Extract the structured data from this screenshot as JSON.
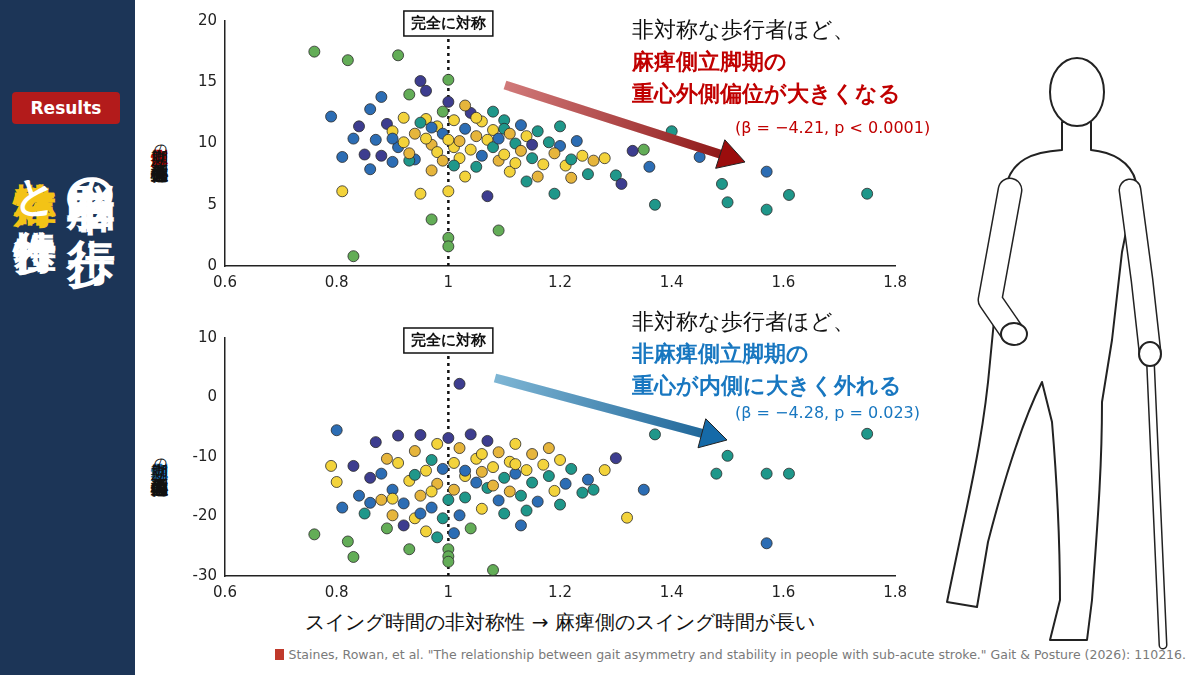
{
  "sidebar": {
    "badge": "Results",
    "title": "脳卒中者の歩行",
    "subtitle": [
      "非対称性",
      "と歩行特性"
    ]
  },
  "chart_data": [
    {
      "type": "scatter",
      "ylabel": [
        "麻痺側",
        "立脚期",
        "の",
        "重心外側偏位"
      ],
      "x": [
        0.76,
        0.82,
        0.91,
        0.83,
        0.81,
        0.97,
        1.0,
        1.0,
        1.0,
        1.0,
        1.09,
        0.79,
        0.81,
        0.83,
        0.85,
        0.86,
        0.88,
        0.87,
        0.89,
        0.9,
        0.91,
        0.92,
        0.93,
        0.95,
        0.96,
        0.97,
        0.95,
        0.94,
        0.98,
        0.96,
        0.92,
        0.93,
        0.94,
        0.96,
        0.97,
        0.98,
        0.99,
        1.01,
        1.01,
        1.02,
        1.02,
        1.03,
        1.03,
        1.04,
        1.04,
        1.05,
        1.05,
        1.06,
        1.06,
        1.07,
        1.07,
        1.08,
        1.08,
        1.09,
        1.09,
        1.1,
        1.1,
        1.1,
        1.11,
        1.12,
        1.12,
        1.13,
        1.13,
        1.14,
        1.14,
        1.15,
        1.15,
        1.16,
        1.17,
        1.18,
        1.19,
        1.2,
        1.2,
        1.21,
        1.22,
        1.22,
        1.23,
        1.24,
        1.25,
        1.26,
        1.28,
        1.3,
        1.31,
        1.33,
        1.35,
        1.36,
        1.37,
        1.4,
        1.45,
        1.49,
        1.5,
        1.57,
        1.57,
        1.61,
        1.75,
        0.88,
        0.9,
        0.86,
        0.99,
        1.0,
        0.97,
        1.03,
        0.95,
        1.05,
        1.08,
        0.84,
        1.11,
        1.0,
        1.01,
        0.93,
        1.16,
        1.19,
        0.9,
        0.99
      ],
      "values": [
        17.5,
        16.8,
        17.2,
        0.8,
        6.1,
        3.8,
        2.3,
        1.6,
        15.2,
        13.4,
        2.9,
        12.2,
        8.9,
        10.4,
        9.1,
        12.8,
        13.8,
        10.3,
        11.6,
        11,
        9.7,
        12.1,
        14,
        15.1,
        12,
        9.9,
        5.9,
        8.7,
        11.4,
        14.3,
        10.1,
        8.6,
        10.8,
        10.4,
        7.8,
        9.3,
        10.8,
        9.7,
        11.9,
        10.2,
        8.8,
        11.2,
        7.3,
        9.5,
        12.5,
        10.6,
        8.1,
        11.8,
        9,
        10.3,
        5.7,
        9.7,
        11.1,
        8.6,
        10.4,
        11.9,
        11.2,
        9.1,
        7.7,
        10,
        8.4,
        11.5,
        9.4,
        6.9,
        10.6,
        8.8,
        9.9,
        7.3,
        8.3,
        10.1,
        5.9,
        9.8,
        11.4,
        8.2,
        7.2,
        8.7,
        10.2,
        9,
        7.5,
        8.6,
        8.8,
        7.4,
        6.7,
        9.4,
        9.5,
        8.1,
        5,
        11,
        8.9,
        6.7,
        5.2,
        7.7,
        4.6,
        5.8,
        5.9,
        9,
        8.5,
        7.9,
        12.6,
        6.1,
        11.3,
        13.1,
        11.7,
        12.1,
        12.6,
        11.4,
        10.8,
        10.3,
        8.2,
        9.2,
        11,
        9.2,
        10.4,
        8.6
      ],
      "colors": [
        "#63ad57",
        "#63ad57",
        "#63ad57",
        "#63ad57",
        "#f3d33b",
        "#63ad57",
        "#63ad57",
        "#63ad57",
        "#63ad57",
        "#3d3d8f",
        "#63ad57",
        "#2c6db4",
        "#2c6db4",
        "#2c6db4",
        "#3d3d8f",
        "#2c6db4",
        "#2c6db4",
        "#2c6db4",
        "#3d3d8f",
        "#f3d33b",
        "#2c6db4",
        "#f3d33b",
        "#63ad57",
        "#3d3d8f",
        "#f3d33b",
        "#e6b53c",
        "#f3d33b",
        "#2c6db4",
        "#f3d33b",
        "#3d3d8f",
        "#f3d33b",
        "#1f978a",
        "#e6b53c",
        "#f3d33b",
        "#e6b53c",
        "#f3d33b",
        "#2c6db4",
        "#f3d33b",
        "#f3d33b",
        "#e6b53c",
        "#f3d33b",
        "#2c6db4",
        "#f3d33b",
        "#f3d33b",
        "#3d3d8f",
        "#e6b53c",
        "#1f978a",
        "#f3d33b",
        "#2c6db4",
        "#f3d33b",
        "#3d3d8f",
        "#1f978a",
        "#f3d33b",
        "#e6b53c",
        "#2c6db4",
        "#1f978a",
        "#1f978a",
        "#f3d33b",
        "#f3d33b",
        "#1f978a",
        "#f3d33b",
        "#2c6db4",
        "#e6b53c",
        "#1f978a",
        "#f3d33b",
        "#1f978a",
        "#3d3d8f",
        "#e6b53c",
        "#f3d33b",
        "#1f978a",
        "#1f978a",
        "#2c6db4",
        "#1f978a",
        "#f3d33b",
        "#e6b53c",
        "#1f978a",
        "#2c6db4",
        "#f3d33b",
        "#1f978a",
        "#e6b53c",
        "#f3d33b",
        "#1f978a",
        "#3d3d8f",
        "#3d3d8f",
        "#63ad57",
        "#2c6db4",
        "#1f978a",
        "#1f978a",
        "#2c6db4",
        "#1f978a",
        "#1f978a",
        "#2c6db4",
        "#1f978a",
        "#1f978a",
        "#1f978a",
        "#3d3d8f",
        "#2c6db4",
        "#2c6db4",
        "#63ad57",
        "#f3d33b",
        "#2c6db4",
        "#e6b53c",
        "#1f978a",
        "#f3d33b",
        "#1f978a",
        "#3d3d8f",
        "#e6b53c",
        "#f3d33b",
        "#1f978a",
        "#e6b53c",
        "#1f978a",
        "#e6b53c",
        "#2c6db4",
        "#e6b53c"
      ],
      "marker": "circle",
      "xlim": [
        0.6,
        1.8
      ],
      "xticks": [
        0.6,
        0.8,
        1,
        1.2,
        1.4,
        1.6,
        1.8
      ],
      "ylim": [
        0,
        20
      ],
      "yticks": [
        0,
        5,
        10,
        15,
        20
      ],
      "grid": false,
      "annotations": [
        {
          "x": 1,
          "label": "完全に対称"
        }
      ],
      "callout": {
        "lines": [
          "非対称な歩行者ほど、",
          "麻痺側立脚期の",
          "重心外側偏位が大きくなる"
        ],
        "stat": "(β = −4.21, p < 0.0001)"
      }
    },
    {
      "type": "scatter",
      "ylabel": [
        "非麻痺側",
        "立脚期",
        "の",
        "重心内側偏位"
      ],
      "xlabel": "スイング時間の非対称性 → 麻痺側のスイング時間が長い",
      "x": [
        0.76,
        0.8,
        0.81,
        0.82,
        0.83,
        0.79,
        0.8,
        0.83,
        0.84,
        0.85,
        0.86,
        0.87,
        0.88,
        0.88,
        0.89,
        0.9,
        0.9,
        0.91,
        0.91,
        0.92,
        0.93,
        0.93,
        0.94,
        0.94,
        0.95,
        0.95,
        0.96,
        0.96,
        0.97,
        0.97,
        0.98,
        0.98,
        0.99,
        0.99,
        1.0,
        1.0,
        1.0,
        1.0,
        1.0,
        1.01,
        1.01,
        1.02,
        1.02,
        1.02,
        1.03,
        1.03,
        1.04,
        1.04,
        1.05,
        1.05,
        1.06,
        1.06,
        1.07,
        1.07,
        1.08,
        1.08,
        1.09,
        1.09,
        1.1,
        1.1,
        1.11,
        1.11,
        1.12,
        1.12,
        1.13,
        1.13,
        1.14,
        1.15,
        1.15,
        1.16,
        1.17,
        1.18,
        1.19,
        1.2,
        1.2,
        1.21,
        1.22,
        1.24,
        1.25,
        1.26,
        1.28,
        1.3,
        1.32,
        1.35,
        1.37,
        1.48,
        1.5,
        1.57,
        1.57,
        1.61,
        1.75,
        0.9,
        0.92,
        0.97,
        1.03,
        0.95,
        1.06,
        0.86,
        1.08,
        0.98,
        1.14,
        0.89,
        1.01,
        1.12,
        1.18,
        0.94
      ],
      "values": [
        -23,
        -5.5,
        -18.5,
        -24.2,
        -26.8,
        -11.5,
        -14.2,
        -11.5,
        -16.5,
        -19.5,
        -13.5,
        -7.5,
        -12.8,
        -17.2,
        -22,
        -15.5,
        -19.8,
        -6.4,
        -11,
        -17.8,
        -14,
        -25.5,
        -9,
        -20.3,
        -6.3,
        -16.5,
        -12.3,
        -22.5,
        -10.5,
        -18.5,
        -14.5,
        -7.8,
        -12,
        -20.3,
        -6.8,
        -25.5,
        -26.7,
        -27.6,
        -17.2,
        -11,
        -15.5,
        2.3,
        -8.5,
        -19.8,
        -13.2,
        -16.8,
        -6.2,
        -22,
        -10.3,
        -14.3,
        -18.7,
        -12.5,
        -7.3,
        -15.2,
        -29,
        -11.7,
        -17.3,
        -9.2,
        -13.5,
        -19.5,
        -10.8,
        -15.8,
        -12.8,
        -7.8,
        -16.5,
        -21.5,
        -12.2,
        -14.3,
        -9.5,
        -17.5,
        -11.3,
        -13.2,
        -15.7,
        -18,
        -10.5,
        -14.5,
        -12,
        -16,
        -13.8,
        -15.5,
        -12.2,
        -10.2,
        -20.2,
        -15.5,
        -6.2,
        -12.8,
        -9.8,
        -12.8,
        -24.5,
        -12.8,
        -6.1,
        -17,
        -21.5,
        -15.8,
        -12.3,
        -19.5,
        -9.5,
        -17.7,
        -14.8,
        -23.5,
        -19,
        -10.3,
        -22.8,
        -11.2,
        -8.5,
        -13
      ],
      "colors": [
        "#63ad57",
        "#2c6db4",
        "#2c6db4",
        "#63ad57",
        "#63ad57",
        "#f3d33b",
        "#f3d33b",
        "#3d3d8f",
        "#2c6db4",
        "#1f978a",
        "#3d3d8f",
        "#3d3d8f",
        "#2c6db4",
        "#e6b53c",
        "#63ad57",
        "#2c6db4",
        "#e6b53c",
        "#3d3d8f",
        "#f3d33b",
        "#2c6db4",
        "#f3d33b",
        "#63ad57",
        "#e6b53c",
        "#f3d33b",
        "#3d3d8f",
        "#e6b53c",
        "#f3d33b",
        "#f3d33b",
        "#1f978a",
        "#2c6db4",
        "#e6b53c",
        "#f3d33b",
        "#2c6db4",
        "#1f978a",
        "#3d3d8f",
        "#63ad57",
        "#63ad57",
        "#63ad57",
        "#1f978a",
        "#f3d33b",
        "#e6b53c",
        "#3d3d8f",
        "#e6b53c",
        "#2c6db4",
        "#f3d33b",
        "#1f978a",
        "#3d3d8f",
        "#63ad57",
        "#f3d33b",
        "#2c6db4",
        "#f3d33b",
        "#e6b53c",
        "#3d3d8f",
        "#1f978a",
        "#63ad57",
        "#f3d33b",
        "#2c6db4",
        "#e6b53c",
        "#1f978a",
        "#1f978a",
        "#f3d33b",
        "#e6b53c",
        "#2c6db4",
        "#f3d33b",
        "#1f978a",
        "#2c6db4",
        "#f3d33b",
        "#1f978a",
        "#e6b53c",
        "#2c6db4",
        "#f3d33b",
        "#1f978a",
        "#f3d33b",
        "#1f978a",
        "#f3d33b",
        "#2c6db4",
        "#1f978a",
        "#1f978a",
        "#2c6db4",
        "#1f978a",
        "#f3d33b",
        "#3d3d8f",
        "#f3d33b",
        "#2c6db4",
        "#1f978a",
        "#1f978a",
        "#1f978a",
        "#1f978a",
        "#2c6db4",
        "#1f978a",
        "#1f978a",
        "#f3d33b",
        "#3d3d8f",
        "#f3d33b",
        "#2c6db4",
        "#2c6db4",
        "#f3d33b",
        "#2c6db4",
        "#e6b53c",
        "#1f978a",
        "#1f978a",
        "#e6b53c",
        "#2c6db4",
        "#f3d33b",
        "#e6b53c",
        "#1f978a"
      ],
      "marker": "circle",
      "xlim": [
        0.6,
        1.8
      ],
      "xticks": [
        0.6,
        0.8,
        1,
        1.2,
        1.4,
        1.6,
        1.8
      ],
      "ylim": [
        -30,
        10
      ],
      "yticks": [
        -30,
        -20,
        -10,
        0,
        10
      ],
      "grid": false,
      "annotations": [
        {
          "x": 1,
          "label": "完全に対称"
        }
      ],
      "callout": {
        "lines": [
          "非対称な歩行者ほど、",
          "非麻痺側立脚期の",
          "重心が内側に大きく外れる"
        ],
        "stat": "(β = −4.28, p = 0.023)"
      }
    }
  ],
  "citation": "Staines, Rowan, et al. \"The relationship between gait asymmetry and stability in people with sub-acute stroke.\" Gait & Posture (2026): 110216."
}
